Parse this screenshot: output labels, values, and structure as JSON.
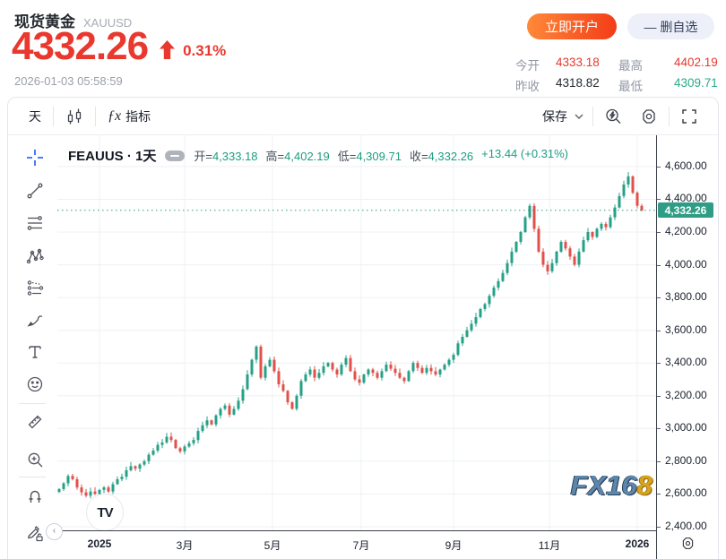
{
  "header": {
    "title": "现货黄金",
    "symbol_code": "XAUUSD",
    "price": "4332.26",
    "change_percent": "0.31%",
    "timestamp": "2026-01-03 05:58:59",
    "open_account_label": "立即开户",
    "remove_watchlist_label": "— 删自选",
    "stats": [
      {
        "label": "今开",
        "value": "4333.18",
        "color": "v-red"
      },
      {
        "label": "最高",
        "value": "4402.19",
        "color": "v-red"
      },
      {
        "label": "昨收",
        "value": "4318.82",
        "color": "v-dark"
      },
      {
        "label": "最低",
        "value": "4309.71",
        "color": "v-green"
      }
    ],
    "colors": {
      "price_red": "#e9382e",
      "value_green": "#2aab87"
    }
  },
  "toolbar": {
    "interval_label": "天",
    "fx_glyph": "ƒx",
    "indicators_label": "指标",
    "save_label": "保存"
  },
  "legend": {
    "series_title": "FEAUUS · 1天",
    "ohlc": [
      {
        "label": "开=",
        "value": "4,333.18"
      },
      {
        "label": "高=",
        "value": "4,402.19"
      },
      {
        "label": "低=",
        "value": "4,309.71"
      },
      {
        "label": "收=",
        "value": "4,332.26"
      }
    ],
    "change": "+13.44 (+0.31%)"
  },
  "watermark": {
    "fx168_blue": "FX16",
    "fx168_gold": "8",
    "tv_logo_text": "TV"
  },
  "icons": {
    "left_toolbar": [
      "crosshair",
      "trend-line",
      "fib-retracement",
      "xabcd-pattern",
      "position-tool",
      "brush",
      "text",
      "emoji",
      "ruler",
      "zoom-in",
      "magnet",
      "lock-drawings"
    ],
    "top_toolbar": [
      "candlestick-style",
      "chevron-down",
      "quick-search",
      "settings-gear",
      "fullscreen"
    ],
    "axis": [
      "price-scale-gear"
    ]
  },
  "chart_data": {
    "type": "candlestick",
    "symbol": "XAUUSD 现货黄金",
    "interval": "1天",
    "title": "FEAUUS · 1天",
    "grid": true,
    "y_axis": {
      "min": 2378,
      "max": 4791
    },
    "y_ticks": [
      4600,
      4400,
      4200,
      4000,
      3800,
      3600,
      3400,
      3200,
      3000,
      2800,
      2600,
      2400
    ],
    "x_ticks": [
      "2025",
      "3月",
      "5月",
      "7月",
      "9月",
      "11月",
      "2026"
    ],
    "x_tick_indices": [
      9,
      28,
      47.6,
      67.4,
      88,
      109.4,
      129
    ],
    "last_price": 4332.26,
    "first_open": 2612,
    "colors": {
      "up": "#26a087",
      "down": "#e1504a",
      "last_price_line": "#2a9d8a"
    },
    "closes": [
      2630,
      2665,
      2710,
      2690,
      2640,
      2610,
      2590,
      2615,
      2600,
      2625,
      2640,
      2615,
      2660,
      2690,
      2705,
      2745,
      2770,
      2755,
      2780,
      2800,
      2840,
      2865,
      2900,
      2915,
      2950,
      2930,
      2880,
      2860,
      2890,
      2910,
      2930,
      2985,
      3020,
      3050,
      3025,
      3080,
      3120,
      3140,
      3085,
      3120,
      3170,
      3240,
      3330,
      3420,
      3500,
      3310,
      3380,
      3420,
      3350,
      3270,
      3230,
      3160,
      3120,
      3200,
      3290,
      3330,
      3360,
      3310,
      3340,
      3380,
      3400,
      3360,
      3330,
      3390,
      3430,
      3350,
      3300,
      3280,
      3330,
      3360,
      3340,
      3310,
      3350,
      3390,
      3365,
      3340,
      3310,
      3290,
      3350,
      3400,
      3370,
      3340,
      3370,
      3350,
      3330,
      3360,
      3390,
      3420,
      3450,
      3520,
      3560,
      3600,
      3640,
      3680,
      3730,
      3760,
      3810,
      3860,
      3900,
      3950,
      4010,
      4080,
      4140,
      4200,
      4290,
      4360,
      4220,
      4080,
      4000,
      3960,
      4010,
      4080,
      4140,
      4100,
      4050,
      4000,
      4080,
      4150,
      4200,
      4170,
      4220,
      4250,
      4230,
      4290,
      4350,
      4420,
      4490,
      4540,
      4440,
      4360,
      4332.26
    ]
  }
}
